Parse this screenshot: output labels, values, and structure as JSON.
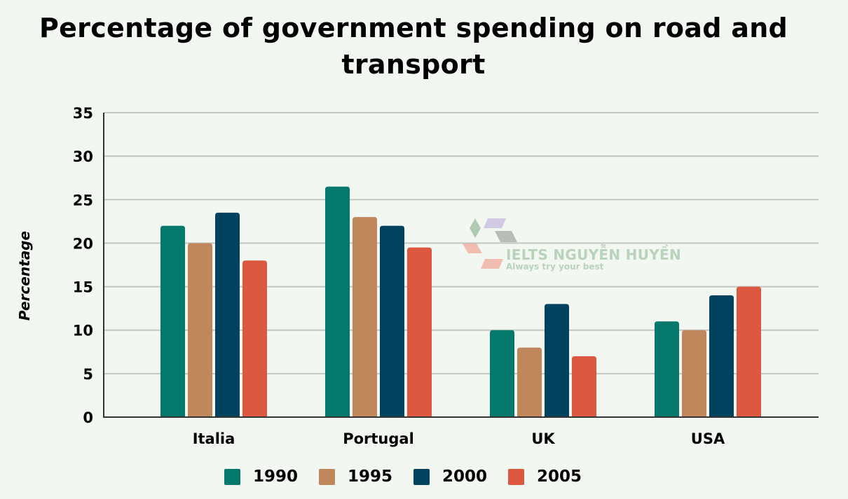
{
  "chart_data": {
    "type": "bar",
    "title": "Percentage of government spending on road and transport",
    "title_lines": [
      "Percentage of government spending on road and",
      "transport"
    ],
    "xlabel": "",
    "ylabel": "Percentage",
    "ylim": [
      0,
      35
    ],
    "yticks": [
      0,
      5,
      10,
      15,
      20,
      25,
      30,
      35
    ],
    "grid": true,
    "legend_position": "bottom",
    "categories": [
      "Italia",
      "Portugal",
      "UK",
      "USA"
    ],
    "series": [
      {
        "name": "1990",
        "color": "#03786b",
        "values": [
          22,
          26.5,
          10,
          11
        ]
      },
      {
        "name": "1995",
        "color": "#c0865c",
        "values": [
          20,
          23,
          8,
          10
        ]
      },
      {
        "name": "2000",
        "color": "#01435e",
        "values": [
          23.5,
          22,
          13,
          14
        ]
      },
      {
        "name": "2005",
        "color": "#dc5840",
        "values": [
          18,
          19.5,
          7,
          15
        ]
      }
    ]
  },
  "watermark": {
    "logo_letters": [
      "L",
      "T",
      "S",
      "E",
      "I"
    ],
    "title": "IELTS NGUYỄN HUYỀN",
    "tagline": "Always try your best"
  }
}
